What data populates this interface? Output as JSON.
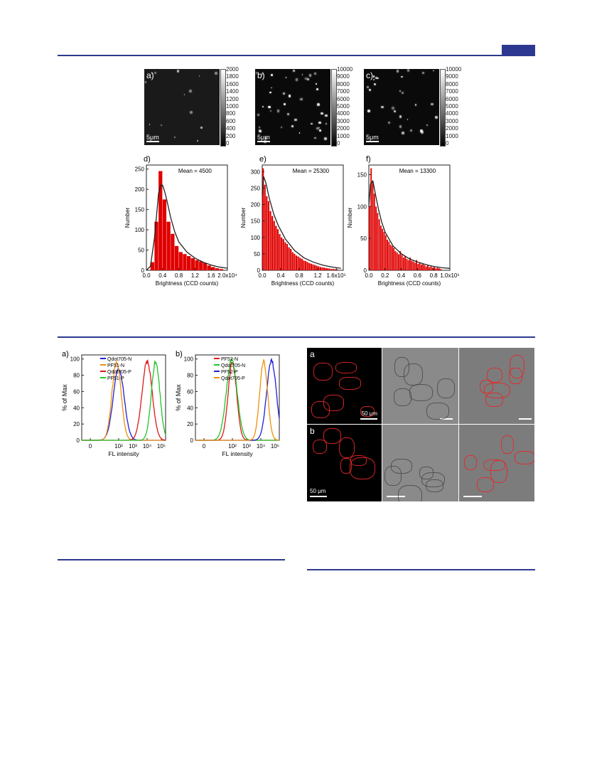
{
  "figure1": {
    "top_panels": [
      {
        "label": "a)",
        "scale": "5μm",
        "colorbar_ticks": [
          "2000",
          "1800",
          "1600",
          "1400",
          "1200",
          "1000",
          "800",
          "600",
          "400",
          "200",
          "0"
        ]
      },
      {
        "label": "b)",
        "scale": "5μm",
        "colorbar_ticks": [
          "10000",
          "9000",
          "8000",
          "7000",
          "6000",
          "5000",
          "4000",
          "3000",
          "2000",
          "1000",
          "0"
        ]
      },
      {
        "label": "c)",
        "scale": "5μm",
        "colorbar_ticks": [
          "10000",
          "9000",
          "8000",
          "7000",
          "6000",
          "5000",
          "4000",
          "3000",
          "2000",
          "1000",
          "0"
        ]
      }
    ]
  },
  "figure3": {
    "panel_labels": [
      "a",
      "b"
    ],
    "scale_labels": [
      "50 μm",
      "50 μm"
    ]
  },
  "colors": {
    "accent": "#2d3990",
    "bar": "#e00000",
    "fit": "#222222"
  },
  "chart_data": [
    {
      "type": "bar",
      "panel": "d)",
      "annotation": "Mean = 4500",
      "xlabel": "Brightness (CCD counts)",
      "ylabel": "Number",
      "xlim": [
        0,
        2.0
      ],
      "ylim": [
        0,
        260
      ],
      "x_ticks": [
        "0.0",
        "0.4",
        "0.8",
        "1.2",
        "1.6",
        "2.0x10⁴"
      ],
      "y_ticks": [
        "0",
        "50",
        "100",
        "150",
        "200",
        "250"
      ],
      "bin_width": 0.1,
      "x": [
        0.15,
        0.25,
        0.35,
        0.45,
        0.55,
        0.65,
        0.75,
        0.85,
        0.95,
        1.05,
        1.15,
        1.25,
        1.35,
        1.45,
        1.55,
        1.65,
        1.75,
        1.85
      ],
      "values": [
        20,
        120,
        245,
        175,
        120,
        90,
        60,
        45,
        40,
        35,
        30,
        25,
        22,
        18,
        12,
        8,
        5,
        3
      ],
      "fit_x": [
        0.0,
        0.1,
        0.2,
        0.3,
        0.35,
        0.4,
        0.45,
        0.5,
        0.6,
        0.7,
        0.8,
        1.0,
        1.2,
        1.4,
        1.6,
        1.8,
        2.0
      ],
      "fit_y": [
        0,
        10,
        80,
        190,
        210,
        210,
        195,
        175,
        130,
        95,
        70,
        45,
        30,
        20,
        13,
        8,
        5
      ]
    },
    {
      "type": "bar",
      "panel": "e)",
      "annotation": "Mean = 25300",
      "xlabel": "Brightness (CCD counts)",
      "ylabel": "Number",
      "xlim": [
        0,
        1.75
      ],
      "ylim": [
        0,
        320
      ],
      "x_ticks": [
        "0.0",
        "0.4",
        "0.8",
        "1.2",
        "1.6x10⁵"
      ],
      "y_ticks": [
        "0",
        "50",
        "100",
        "150",
        "200",
        "250",
        "300"
      ],
      "bin_width": 0.04,
      "x": [
        0.02,
        0.06,
        0.1,
        0.14,
        0.18,
        0.22,
        0.26,
        0.3,
        0.34,
        0.38,
        0.42,
        0.46,
        0.5,
        0.54,
        0.58,
        0.62,
        0.66,
        0.7,
        0.74,
        0.78,
        0.82,
        0.86,
        0.9,
        0.94,
        0.98,
        1.02,
        1.06,
        1.1,
        1.14,
        1.18,
        1.22,
        1.26,
        1.3,
        1.34,
        1.38,
        1.42,
        1.46,
        1.5,
        1.54,
        1.58,
        1.62
      ],
      "values": [
        310,
        260,
        225,
        210,
        180,
        165,
        150,
        135,
        125,
        110,
        100,
        95,
        85,
        80,
        70,
        65,
        55,
        50,
        45,
        42,
        38,
        35,
        30,
        28,
        25,
        22,
        20,
        18,
        16,
        14,
        12,
        10,
        9,
        8,
        7,
        6,
        5,
        4,
        4,
        3,
        3
      ],
      "fit_x": [
        0.0,
        0.03,
        0.08,
        0.15,
        0.25,
        0.35,
        0.5,
        0.7,
        0.9,
        1.1,
        1.3,
        1.5,
        1.7
      ],
      "fit_y": [
        230,
        285,
        265,
        220,
        170,
        135,
        95,
        60,
        38,
        25,
        16,
        10,
        6
      ]
    },
    {
      "type": "bar",
      "panel": "f)",
      "annotation": "Mean = 13300",
      "xlabel": "Brightness (CCD counts)",
      "ylabel": "Number",
      "xlim": [
        0,
        1.0
      ],
      "ylim": [
        0,
        165
      ],
      "x_ticks": [
        "0.0",
        "0.2",
        "0.4",
        "0.6",
        "0.8",
        "1.0x10⁵"
      ],
      "y_ticks": [
        "0",
        "50",
        "100",
        "150"
      ],
      "bin_width": 0.02,
      "x": [
        0.01,
        0.03,
        0.05,
        0.07,
        0.09,
        0.11,
        0.13,
        0.15,
        0.17,
        0.19,
        0.21,
        0.23,
        0.25,
        0.27,
        0.29,
        0.31,
        0.33,
        0.35,
        0.37,
        0.39,
        0.41,
        0.43,
        0.45,
        0.47,
        0.49,
        0.51,
        0.53,
        0.55,
        0.57,
        0.59,
        0.61,
        0.63,
        0.65,
        0.67,
        0.69,
        0.71,
        0.73,
        0.75,
        0.77,
        0.79,
        0.81,
        0.83,
        0.85,
        0.87,
        0.89
      ],
      "values": [
        100,
        160,
        140,
        120,
        100,
        90,
        80,
        70,
        65,
        60,
        55,
        48,
        45,
        40,
        38,
        35,
        30,
        28,
        25,
        30,
        24,
        20,
        22,
        18,
        16,
        20,
        15,
        14,
        12,
        16,
        10,
        12,
        9,
        10,
        8,
        6,
        8,
        5,
        6,
        4,
        5,
        3,
        4,
        3,
        2
      ],
      "fit_x": [
        0.0,
        0.02,
        0.05,
        0.08,
        0.12,
        0.16,
        0.2,
        0.3,
        0.4,
        0.5,
        0.6,
        0.7,
        0.8,
        0.9,
        1.0
      ],
      "fit_y": [
        100,
        135,
        140,
        120,
        95,
        75,
        60,
        38,
        26,
        18,
        13,
        9,
        6,
        4,
        3
      ]
    },
    {
      "type": "line",
      "panel": "a)",
      "xlabel": "FL intensity",
      "ylabel": "% of Max",
      "x_ticks": [
        "0",
        "10²",
        "10³",
        "10⁴",
        "10⁵"
      ],
      "y_ticks": [
        "0",
        "20",
        "40",
        "60",
        "80",
        "100"
      ],
      "xlim": [
        -0.6,
        5.3
      ],
      "ylim": [
        0,
        105
      ],
      "series": [
        {
          "name": "Q₍dot₎705-N",
          "color": "#1f1fd6",
          "peak": 2.0,
          "width": 0.38,
          "height": 88
        },
        {
          "name": "PF51-N",
          "color": "#f0900c",
          "peak": 1.85,
          "width": 0.32,
          "height": 97
        },
        {
          "name": "Q₍dot₎705-P",
          "color": "#e01818",
          "peak": 4.0,
          "width": 0.36,
          "height": 97
        },
        {
          "name": "PF51-P",
          "color": "#22c42a",
          "peak": 4.6,
          "width": 0.3,
          "height": 97
        }
      ],
      "legend_labels": [
        "Qdot705-N",
        "PF51-N",
        "Qdot705-P",
        "PF51-P"
      ]
    },
    {
      "type": "line",
      "panel": "b)",
      "xlabel": "FL intensity",
      "ylabel": "% of Max",
      "x_ticks": [
        "0",
        "10²",
        "10³",
        "10⁴",
        "10⁵"
      ],
      "y_ticks": [
        "0",
        "20",
        "40",
        "60",
        "80",
        "100"
      ],
      "xlim": [
        -0.6,
        5.3
      ],
      "ylim": [
        0,
        105
      ],
      "series": [
        {
          "name": "PF52-N",
          "color": "#e01818",
          "peak": 2.0,
          "width": 0.3,
          "height": 96
        },
        {
          "name": "Qdot705-N",
          "color": "#22c42a",
          "peak": 1.95,
          "width": 0.38,
          "height": 99
        },
        {
          "name": "PF52-P",
          "color": "#1f1fd6",
          "peak": 4.75,
          "width": 0.34,
          "height": 98
        },
        {
          "name": "Qdot705-P",
          "color": "#f0900c",
          "peak": 4.2,
          "width": 0.28,
          "height": 97
        }
      ],
      "legend_labels": [
        "PF52-N",
        "Qdot705-N",
        "PF52-P",
        "Qdot705-P"
      ]
    }
  ]
}
